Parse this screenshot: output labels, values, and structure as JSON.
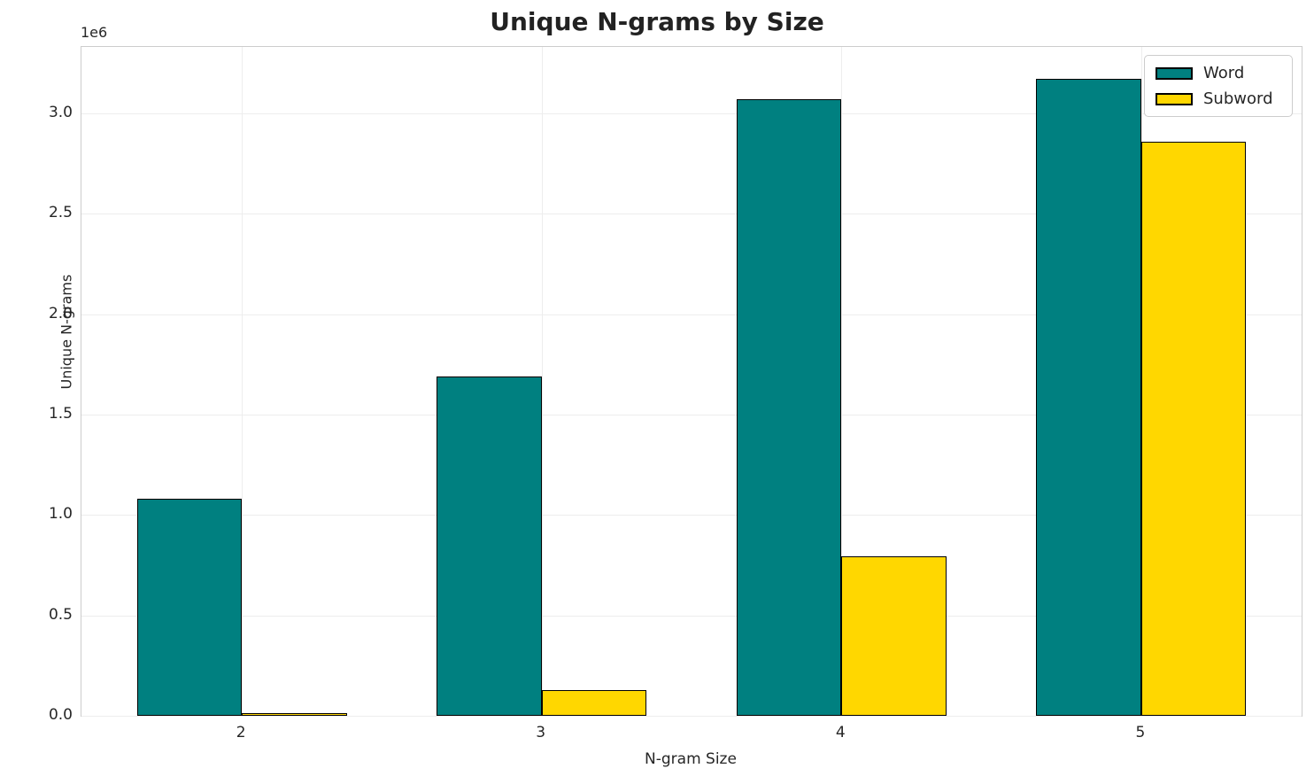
{
  "chart_data": {
    "type": "bar",
    "title": "Unique N-grams by Size",
    "xlabel": "N-gram Size",
    "ylabel": "Unique N-grams",
    "offset_label": "1e6",
    "categories": [
      "2",
      "3",
      "4",
      "5"
    ],
    "series": [
      {
        "name": "Word",
        "color": "#008080",
        "values": [
          1080000,
          1690000,
          3070000,
          3170000
        ]
      },
      {
        "name": "Subword",
        "color": "#FFD700",
        "values": [
          15000,
          130000,
          795000,
          2860000
        ]
      }
    ],
    "bar_edge_color": "#000000",
    "ylim": [
      0,
      3330000
    ],
    "yticks": [
      "0.0",
      "0.5",
      "1.0",
      "1.5",
      "2.0",
      "2.5",
      "3.0"
    ],
    "ytick_values": [
      0,
      500000,
      1000000,
      1500000,
      2000000,
      2500000,
      3000000
    ],
    "grid": true,
    "legend_position": "upper right"
  },
  "colors": {
    "grid": "#ededed",
    "spine": "#cccccc",
    "text": "#262626",
    "title": "#222222",
    "background": "#ffffff"
  }
}
